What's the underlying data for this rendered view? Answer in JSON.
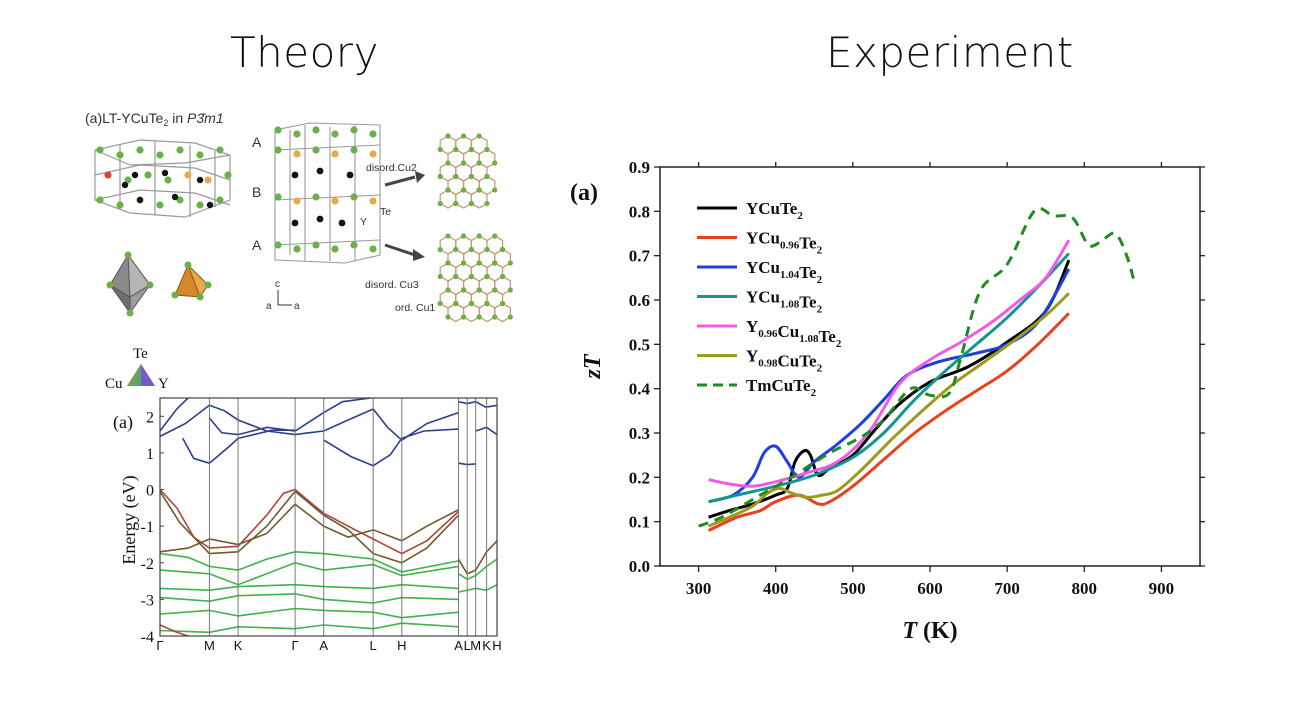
{
  "headings": {
    "left": "Theory",
    "right": "Experiment"
  },
  "crystal": {
    "title_prefix": "(a)LT-YCuTe",
    "title_sub": "2",
    "title_mid": " in ",
    "space_group": "P3̄m1",
    "layer_labels": [
      "A",
      "B",
      "A"
    ],
    "site_labels": {
      "disord_cu2": "disord.Cu2",
      "te": "Te",
      "y": "Y",
      "disord_cu3": "disord. Cu3",
      "ord_cu1": "ord. Cu1"
    },
    "axes": {
      "c": "c",
      "a1": "a",
      "a2": "a"
    }
  },
  "bands": {
    "panel_label": "(a)",
    "ylabel": "Energy (eV)",
    "ylim": [
      -4,
      2.5
    ],
    "y_ticks": [
      2,
      1,
      0,
      -1,
      -2,
      -3,
      -4
    ],
    "kpoints": [
      "Γ",
      "M",
      "K",
      "Γ",
      "A",
      "L",
      "H",
      "A",
      "L",
      "M",
      "K",
      "H"
    ],
    "kpoint_positions": [
      0,
      0.176,
      0.278,
      0.481,
      0.583,
      0.759,
      0.861,
      1.063,
      1.094,
      1.124,
      1.163,
      1.2
    ],
    "legend": {
      "top": "Te",
      "left": "Cu",
      "right": "Y"
    },
    "colors": {
      "conduction": "#2c3f8f",
      "valence_mixed": "#6e5a2c",
      "valence_cu": "#b0433a",
      "valence_te": "#3fb24a"
    }
  },
  "chart_data": {
    "type": "line",
    "panel_label": "(a)",
    "xlabel": "T (K)",
    "ylabel": "zT",
    "xlim": [
      250,
      950
    ],
    "ylim": [
      0,
      0.9
    ],
    "x_ticks": [
      300,
      400,
      500,
      600,
      700,
      800,
      900
    ],
    "y_ticks": [
      0.0,
      0.1,
      0.2,
      0.3,
      0.4,
      0.5,
      0.6,
      0.7,
      0.8,
      0.9
    ],
    "legend_position": "top-left",
    "series": [
      {
        "name": "YCuTe2",
        "label": {
          "parts": [
            [
              "Y",
              ""
            ],
            [
              "Cu",
              ""
            ],
            [
              "Te",
              ""
            ],
            [
              "2",
              "sub"
            ]
          ]
        },
        "color": "#000000",
        "dash": false,
        "points": [
          [
            313,
            0.11
          ],
          [
            340,
            0.125
          ],
          [
            370,
            0.14
          ],
          [
            400,
            0.16
          ],
          [
            415,
            0.175
          ],
          [
            425,
            0.235
          ],
          [
            437,
            0.26
          ],
          [
            445,
            0.25
          ],
          [
            455,
            0.205
          ],
          [
            470,
            0.22
          ],
          [
            500,
            0.25
          ],
          [
            530,
            0.31
          ],
          [
            560,
            0.365
          ],
          [
            600,
            0.415
          ],
          [
            650,
            0.45
          ],
          [
            700,
            0.505
          ],
          [
            750,
            0.575
          ],
          [
            780,
            0.69
          ]
        ]
      },
      {
        "name": "YCu0.96Te2",
        "label": {
          "parts": [
            [
              "Y",
              ""
            ],
            [
              "Cu",
              ""
            ],
            [
              "0.96",
              "sub"
            ],
            [
              "Te",
              ""
            ],
            [
              "2",
              "sub"
            ]
          ]
        },
        "color": "#e8411c",
        "dash": false,
        "points": [
          [
            313,
            0.08
          ],
          [
            350,
            0.11
          ],
          [
            380,
            0.125
          ],
          [
            400,
            0.145
          ],
          [
            430,
            0.16
          ],
          [
            455,
            0.14
          ],
          [
            470,
            0.145
          ],
          [
            500,
            0.18
          ],
          [
            540,
            0.24
          ],
          [
            580,
            0.3
          ],
          [
            620,
            0.35
          ],
          [
            660,
            0.395
          ],
          [
            700,
            0.44
          ],
          [
            740,
            0.5
          ],
          [
            780,
            0.57
          ]
        ]
      },
      {
        "name": "YCu1.04Te2",
        "label": {
          "parts": [
            [
              "Y",
              ""
            ],
            [
              "Cu",
              ""
            ],
            [
              "1.04",
              "sub"
            ],
            [
              "Te",
              ""
            ],
            [
              "2",
              "sub"
            ]
          ]
        },
        "color": "#1c3fe0",
        "dash": false,
        "points": [
          [
            313,
            0.145
          ],
          [
            345,
            0.16
          ],
          [
            370,
            0.2
          ],
          [
            385,
            0.255
          ],
          [
            400,
            0.27
          ],
          [
            415,
            0.235
          ],
          [
            430,
            0.2
          ],
          [
            450,
            0.235
          ],
          [
            480,
            0.275
          ],
          [
            510,
            0.32
          ],
          [
            540,
            0.375
          ],
          [
            570,
            0.43
          ],
          [
            610,
            0.46
          ],
          [
            660,
            0.48
          ],
          [
            700,
            0.5
          ],
          [
            740,
            0.55
          ],
          [
            780,
            0.67
          ]
        ]
      },
      {
        "name": "YCu1.08Te2",
        "label": {
          "parts": [
            [
              "Y",
              ""
            ],
            [
              "Cu",
              ""
            ],
            [
              "1.08",
              "sub"
            ],
            [
              "Te",
              ""
            ],
            [
              "2",
              "sub"
            ]
          ]
        },
        "color": "#14968f",
        "dash": false,
        "points": [
          [
            313,
            0.145
          ],
          [
            350,
            0.16
          ],
          [
            400,
            0.18
          ],
          [
            450,
            0.205
          ],
          [
            500,
            0.245
          ],
          [
            540,
            0.3
          ],
          [
            580,
            0.375
          ],
          [
            620,
            0.44
          ],
          [
            660,
            0.5
          ],
          [
            700,
            0.56
          ],
          [
            740,
            0.63
          ],
          [
            780,
            0.705
          ]
        ]
      },
      {
        "name": "Y0.96Cu1.08Te2",
        "label": {
          "parts": [
            [
              "Y",
              ""
            ],
            [
              "0.96",
              "sub"
            ],
            [
              "Cu",
              ""
            ],
            [
              "1.08",
              "sub"
            ],
            [
              "Te",
              ""
            ],
            [
              "2",
              "sub"
            ]
          ]
        },
        "color": "#f25ae6",
        "dash": false,
        "points": [
          [
            313,
            0.195
          ],
          [
            340,
            0.185
          ],
          [
            370,
            0.18
          ],
          [
            400,
            0.19
          ],
          [
            440,
            0.21
          ],
          [
            480,
            0.235
          ],
          [
            520,
            0.3
          ],
          [
            560,
            0.41
          ],
          [
            600,
            0.465
          ],
          [
            640,
            0.505
          ],
          [
            680,
            0.55
          ],
          [
            720,
            0.605
          ],
          [
            750,
            0.65
          ],
          [
            780,
            0.735
          ]
        ]
      },
      {
        "name": "Y0.98CuTe2",
        "label": {
          "parts": [
            [
              "Y",
              ""
            ],
            [
              "0.98",
              "sub"
            ],
            [
              "Cu",
              ""
            ],
            [
              "Te",
              ""
            ],
            [
              "2",
              "sub"
            ]
          ]
        },
        "color": "#9c9a1e",
        "dash": false,
        "points": [
          [
            313,
            0.09
          ],
          [
            340,
            0.11
          ],
          [
            370,
            0.135
          ],
          [
            390,
            0.165
          ],
          [
            405,
            0.175
          ],
          [
            420,
            0.165
          ],
          [
            440,
            0.155
          ],
          [
            460,
            0.16
          ],
          [
            480,
            0.17
          ],
          [
            510,
            0.215
          ],
          [
            550,
            0.285
          ],
          [
            590,
            0.35
          ],
          [
            630,
            0.41
          ],
          [
            670,
            0.46
          ],
          [
            710,
            0.51
          ],
          [
            750,
            0.565
          ],
          [
            780,
            0.615
          ]
        ]
      },
      {
        "name": "TmCuTe2",
        "label": {
          "parts": [
            [
              "Tm",
              ""
            ],
            [
              "Cu",
              ""
            ],
            [
              "Te",
              ""
            ],
            [
              "2",
              "sub"
            ]
          ]
        },
        "color": "#1f8c23",
        "dash": true,
        "points": [
          [
            300,
            0.09
          ],
          [
            330,
            0.11
          ],
          [
            380,
            0.16
          ],
          [
            420,
            0.2
          ],
          [
            470,
            0.255
          ],
          [
            510,
            0.29
          ],
          [
            540,
            0.33
          ],
          [
            575,
            0.4
          ],
          [
            600,
            0.385
          ],
          [
            625,
            0.39
          ],
          [
            640,
            0.47
          ],
          [
            665,
            0.62
          ],
          [
            700,
            0.68
          ],
          [
            735,
            0.8
          ],
          [
            760,
            0.79
          ],
          [
            785,
            0.785
          ],
          [
            805,
            0.725
          ],
          [
            820,
            0.73
          ],
          [
            840,
            0.75
          ],
          [
            855,
            0.7
          ],
          [
            865,
            0.64
          ]
        ]
      }
    ]
  }
}
